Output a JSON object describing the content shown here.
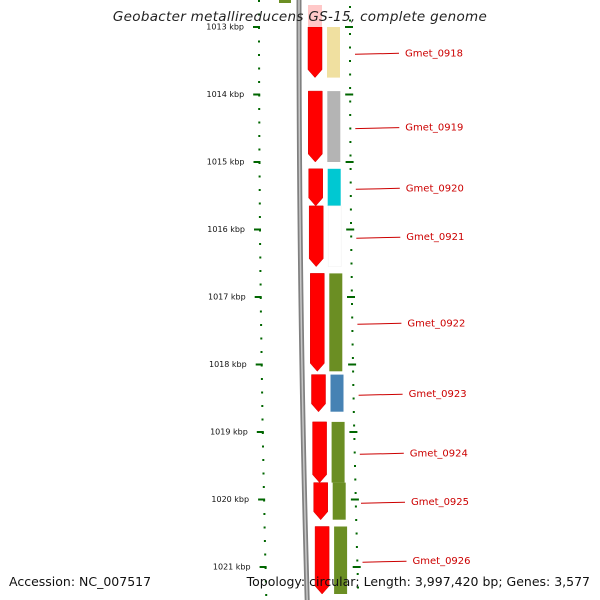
{
  "title": "Geobacter metallireducens GS-15, complete genome",
  "footer": {
    "accession": "Accession: NC_007517",
    "topology": "Topology: circular; Length: 3,997,420 bp; Genes: 3,577"
  },
  "colors": {
    "background": "#ffffff",
    "backbone": "#808080",
    "tick_marks": "#006600",
    "gene_label": "#cc0000",
    "strand_forward": "#ff0000"
  },
  "ruler": {
    "unit": "kbp",
    "ticks": [
      {
        "value": 1013,
        "label": "1013 kbp"
      },
      {
        "value": 1014,
        "label": "1014 kbp"
      },
      {
        "value": 1015,
        "label": "1015 kbp"
      },
      {
        "value": 1016,
        "label": "1016 kbp"
      },
      {
        "value": 1017,
        "label": "1017 kbp"
      },
      {
        "value": 1018,
        "label": "1018 kbp"
      },
      {
        "value": 1019,
        "label": "1019 kbp"
      },
      {
        "value": 1020,
        "label": "1020 kbp"
      },
      {
        "value": 1021,
        "label": "1021 kbp"
      }
    ]
  },
  "genes": [
    {
      "id": "Gmet_0918",
      "start_kbp": 1013.0,
      "end_kbp": 1013.75,
      "color": "#f0e0a0"
    },
    {
      "id": "Gmet_0919",
      "start_kbp": 1013.95,
      "end_kbp": 1015.0,
      "color": "#b4b4b4"
    },
    {
      "id": "Gmet_0920",
      "start_kbp": 1015.1,
      "end_kbp": 1015.65,
      "color": "#00c8d2"
    },
    {
      "id": "Gmet_0921",
      "start_kbp": 1015.65,
      "end_kbp": 1016.55,
      "color": "#ffffff"
    },
    {
      "id": "Gmet_0922",
      "start_kbp": 1016.65,
      "end_kbp": 1018.1,
      "color": "#6b8e23"
    },
    {
      "id": "Gmet_0923",
      "start_kbp": 1018.15,
      "end_kbp": 1018.7,
      "color": "#4682b4"
    },
    {
      "id": "Gmet_0924",
      "start_kbp": 1018.85,
      "end_kbp": 1019.75,
      "color": "#6b8e23"
    },
    {
      "id": "Gmet_0925",
      "start_kbp": 1019.75,
      "end_kbp": 1020.3,
      "color": "#6b8e23"
    },
    {
      "id": "Gmet_0926",
      "start_kbp": 1020.4,
      "end_kbp": 1021.4,
      "color": "#6b8e23"
    }
  ]
}
